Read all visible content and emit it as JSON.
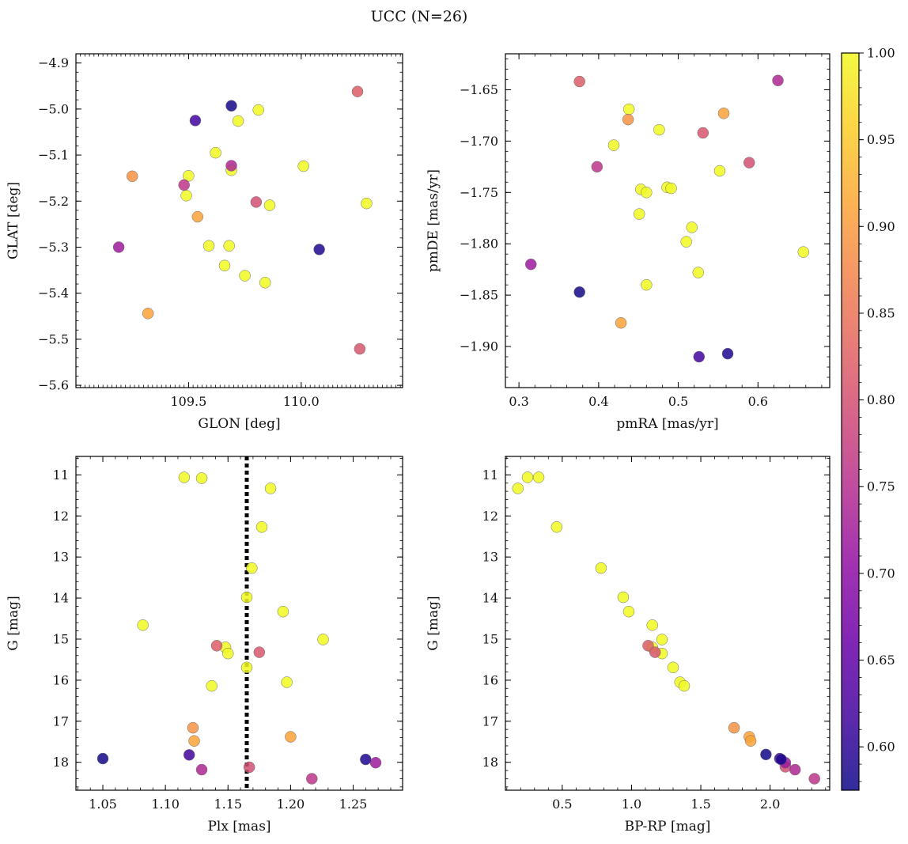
{
  "title": "UCC (N=26)",
  "colorbar": {
    "colormap": "plasma",
    "range": [
      0.575,
      1.0
    ],
    "ticks": [
      0.6,
      0.65,
      0.7,
      0.75,
      0.8,
      0.85,
      0.9,
      0.95,
      1.0
    ],
    "tick_labels": [
      "0.60",
      "0.65",
      "0.70",
      "0.75",
      "0.80",
      "0.85",
      "0.90",
      "0.95",
      "1.00"
    ]
  },
  "chart_data": [
    {
      "type": "scatter",
      "xlabel": "GLON [deg]",
      "ylabel": "GLAT [deg]",
      "xlim": [
        109.0,
        110.45
      ],
      "ylim": [
        -5.605,
        -4.88
      ],
      "xticks": [
        109.5,
        110.0
      ],
      "xtick_labels": [
        "109.5",
        "110.0"
      ],
      "yticks": [
        -5.6,
        -5.5,
        -5.4,
        -5.3,
        -5.2,
        -5.1,
        -5.0,
        -4.9
      ],
      "ytick_labels": [
        "−5.6",
        "−5.5",
        "−5.4",
        "−5.3",
        "−5.2",
        "−5.1",
        "−5.0",
        "−4.9"
      ],
      "points": [
        {
          "x": 109.69,
          "y": -4.993,
          "c": 0.58
        },
        {
          "x": 109.53,
          "y": -5.025,
          "c": 0.62
        },
        {
          "x": 110.08,
          "y": -5.305,
          "c": 0.59
        },
        {
          "x": 109.19,
          "y": -5.3,
          "c": 0.72
        },
        {
          "x": 109.69,
          "y": -5.123,
          "c": 0.74
        },
        {
          "x": 109.48,
          "y": -5.165,
          "c": 0.76
        },
        {
          "x": 110.25,
          "y": -4.962,
          "c": 0.82
        },
        {
          "x": 110.26,
          "y": -5.521,
          "c": 0.81
        },
        {
          "x": 109.8,
          "y": -5.202,
          "c": 0.8
        },
        {
          "x": 109.25,
          "y": -5.146,
          "c": 0.89
        },
        {
          "x": 109.54,
          "y": -5.234,
          "c": 0.91
        },
        {
          "x": 109.32,
          "y": -5.444,
          "c": 0.91
        },
        {
          "x": 109.72,
          "y": -5.026,
          "c": 1.0
        },
        {
          "x": 109.81,
          "y": -5.002,
          "c": 1.0
        },
        {
          "x": 109.62,
          "y": -5.095,
          "c": 1.0
        },
        {
          "x": 109.69,
          "y": -5.133,
          "c": 1.0
        },
        {
          "x": 109.5,
          "y": -5.145,
          "c": 1.0
        },
        {
          "x": 109.49,
          "y": -5.188,
          "c": 1.0
        },
        {
          "x": 110.01,
          "y": -5.124,
          "c": 1.0
        },
        {
          "x": 110.29,
          "y": -5.205,
          "c": 1.0
        },
        {
          "x": 109.86,
          "y": -5.209,
          "c": 1.0
        },
        {
          "x": 109.59,
          "y": -5.297,
          "c": 1.0
        },
        {
          "x": 109.68,
          "y": -5.297,
          "c": 1.0
        },
        {
          "x": 109.66,
          "y": -5.34,
          "c": 1.0
        },
        {
          "x": 109.75,
          "y": -5.362,
          "c": 1.0
        },
        {
          "x": 109.84,
          "y": -5.377,
          "c": 1.0
        }
      ]
    },
    {
      "type": "scatter",
      "xlabel": "pmRA [mas/yr]",
      "ylabel": "pmDE [mas/yr]",
      "xlim": [
        0.283,
        0.69
      ],
      "ylim": [
        -1.94,
        -1.615
      ],
      "xticks": [
        0.3,
        0.4,
        0.5,
        0.6
      ],
      "xtick_labels": [
        "0.3",
        "0.4",
        "0.5",
        "0.6"
      ],
      "yticks": [
        -1.9,
        -1.85,
        -1.8,
        -1.75,
        -1.7,
        -1.65
      ],
      "ytick_labels": [
        "−1.90",
        "−1.85",
        "−1.80",
        "−1.75",
        "−1.70",
        "−1.65"
      ],
      "points": [
        {
          "x": 0.376,
          "y": -1.847,
          "c": 0.58
        },
        {
          "x": 0.526,
          "y": -1.91,
          "c": 0.62
        },
        {
          "x": 0.562,
          "y": -1.907,
          "c": 0.59
        },
        {
          "x": 0.315,
          "y": -1.82,
          "c": 0.72
        },
        {
          "x": 0.625,
          "y": -1.641,
          "c": 0.74
        },
        {
          "x": 0.398,
          "y": -1.725,
          "c": 0.76
        },
        {
          "x": 0.376,
          "y": -1.642,
          "c": 0.82
        },
        {
          "x": 0.531,
          "y": -1.692,
          "c": 0.81
        },
        {
          "x": 0.589,
          "y": -1.721,
          "c": 0.8
        },
        {
          "x": 0.437,
          "y": -1.679,
          "c": 0.89
        },
        {
          "x": 0.557,
          "y": -1.673,
          "c": 0.91
        },
        {
          "x": 0.428,
          "y": -1.877,
          "c": 0.91
        },
        {
          "x": 0.438,
          "y": -1.669,
          "c": 1.0
        },
        {
          "x": 0.476,
          "y": -1.689,
          "c": 1.0
        },
        {
          "x": 0.419,
          "y": -1.704,
          "c": 1.0
        },
        {
          "x": 0.453,
          "y": -1.747,
          "c": 1.0
        },
        {
          "x": 0.46,
          "y": -1.75,
          "c": 1.0
        },
        {
          "x": 0.486,
          "y": -1.745,
          "c": 1.0
        },
        {
          "x": 0.491,
          "y": -1.746,
          "c": 1.0
        },
        {
          "x": 0.552,
          "y": -1.729,
          "c": 1.0
        },
        {
          "x": 0.451,
          "y": -1.771,
          "c": 1.0
        },
        {
          "x": 0.517,
          "y": -1.784,
          "c": 1.0
        },
        {
          "x": 0.51,
          "y": -1.798,
          "c": 1.0
        },
        {
          "x": 0.657,
          "y": -1.808,
          "c": 1.0
        },
        {
          "x": 0.525,
          "y": -1.828,
          "c": 1.0
        },
        {
          "x": 0.46,
          "y": -1.84,
          "c": 1.0
        }
      ]
    },
    {
      "type": "scatter",
      "xlabel": "Plx [mas]",
      "ylabel": "G [mag]",
      "xlim": [
        1.0285,
        1.2895
      ],
      "ylim": [
        18.68,
        10.55
      ],
      "xticks": [
        1.05,
        1.1,
        1.15,
        1.2,
        1.25
      ],
      "xtick_labels": [
        "1.05",
        "1.10",
        "1.15",
        "1.20",
        "1.25"
      ],
      "yticks": [
        11,
        12,
        13,
        14,
        15,
        16,
        17,
        18
      ],
      "ytick_labels": [
        "11",
        "12",
        "13",
        "14",
        "15",
        "16",
        "17",
        "18"
      ],
      "vline": 1.165,
      "points": [
        {
          "x": 1.05,
          "y": 17.91,
          "c": 0.58
        },
        {
          "x": 1.119,
          "y": 17.82,
          "c": 0.62
        },
        {
          "x": 1.26,
          "y": 17.93,
          "c": 0.59
        },
        {
          "x": 1.268,
          "y": 18.01,
          "c": 0.72
        },
        {
          "x": 1.129,
          "y": 18.18,
          "c": 0.74
        },
        {
          "x": 1.217,
          "y": 18.4,
          "c": 0.76
        },
        {
          "x": 1.141,
          "y": 15.16,
          "c": 0.82
        },
        {
          "x": 1.175,
          "y": 15.32,
          "c": 0.81
        },
        {
          "x": 1.167,
          "y": 18.12,
          "c": 0.8
        },
        {
          "x": 1.122,
          "y": 17.16,
          "c": 0.89
        },
        {
          "x": 1.123,
          "y": 17.48,
          "c": 0.91
        },
        {
          "x": 1.2,
          "y": 17.38,
          "c": 0.91
        },
        {
          "x": 1.115,
          "y": 11.06,
          "c": 1.0
        },
        {
          "x": 1.129,
          "y": 11.08,
          "c": 1.0
        },
        {
          "x": 1.184,
          "y": 11.33,
          "c": 1.0
        },
        {
          "x": 1.177,
          "y": 12.27,
          "c": 1.0
        },
        {
          "x": 1.169,
          "y": 13.27,
          "c": 1.0
        },
        {
          "x": 1.165,
          "y": 13.98,
          "c": 1.0
        },
        {
          "x": 1.194,
          "y": 14.33,
          "c": 1.0
        },
        {
          "x": 1.082,
          "y": 14.66,
          "c": 1.0
        },
        {
          "x": 1.226,
          "y": 15.01,
          "c": 1.0
        },
        {
          "x": 1.148,
          "y": 15.2,
          "c": 1.0
        },
        {
          "x": 1.15,
          "y": 15.35,
          "c": 1.0
        },
        {
          "x": 1.165,
          "y": 15.69,
          "c": 1.0
        },
        {
          "x": 1.197,
          "y": 16.05,
          "c": 1.0
        },
        {
          "x": 1.137,
          "y": 16.14,
          "c": 1.0
        }
      ]
    },
    {
      "type": "scatter",
      "xlabel": "BP-RP [mag]",
      "ylabel": "G [mag]",
      "xlim": [
        0.09,
        2.43
      ],
      "ylim": [
        18.68,
        10.55
      ],
      "xticks": [
        0.5,
        1.0,
        1.5,
        2.0
      ],
      "xtick_labels": [
        "0.5",
        "1.0",
        "1.5",
        "2.0"
      ],
      "yticks": [
        11,
        12,
        13,
        14,
        15,
        16,
        17,
        18
      ],
      "ytick_labels": [
        "11",
        "12",
        "13",
        "14",
        "15",
        "16",
        "17",
        "18"
      ],
      "points": [
        {
          "x": 1.97,
          "y": 17.81,
          "c": 0.58
        },
        {
          "x": 2.07,
          "y": 17.91,
          "c": 0.62
        },
        {
          "x": 2.08,
          "y": 17.93,
          "c": 0.59
        },
        {
          "x": 2.11,
          "y": 18.01,
          "c": 0.72
        },
        {
          "x": 2.18,
          "y": 18.18,
          "c": 0.74
        },
        {
          "x": 2.32,
          "y": 18.4,
          "c": 0.76
        },
        {
          "x": 1.12,
          "y": 15.16,
          "c": 0.82
        },
        {
          "x": 1.17,
          "y": 15.32,
          "c": 0.81
        },
        {
          "x": 2.11,
          "y": 18.11,
          "c": 0.8
        },
        {
          "x": 1.74,
          "y": 17.16,
          "c": 0.89
        },
        {
          "x": 1.85,
          "y": 17.38,
          "c": 0.91
        },
        {
          "x": 1.86,
          "y": 17.48,
          "c": 0.91
        },
        {
          "x": 0.18,
          "y": 11.33,
          "c": 1.0
        },
        {
          "x": 0.25,
          "y": 11.06,
          "c": 1.0
        },
        {
          "x": 0.33,
          "y": 11.06,
          "c": 1.0
        },
        {
          "x": 0.46,
          "y": 12.27,
          "c": 1.0
        },
        {
          "x": 0.78,
          "y": 13.27,
          "c": 1.0
        },
        {
          "x": 0.94,
          "y": 13.98,
          "c": 1.0
        },
        {
          "x": 0.98,
          "y": 14.33,
          "c": 1.0
        },
        {
          "x": 1.15,
          "y": 14.66,
          "c": 1.0
        },
        {
          "x": 1.22,
          "y": 15.01,
          "c": 1.0
        },
        {
          "x": 1.15,
          "y": 15.2,
          "c": 1.0
        },
        {
          "x": 1.22,
          "y": 15.35,
          "c": 1.0
        },
        {
          "x": 1.3,
          "y": 15.69,
          "c": 1.0
        },
        {
          "x": 1.35,
          "y": 16.05,
          "c": 1.0
        },
        {
          "x": 1.38,
          "y": 16.14,
          "c": 1.0
        }
      ]
    }
  ]
}
